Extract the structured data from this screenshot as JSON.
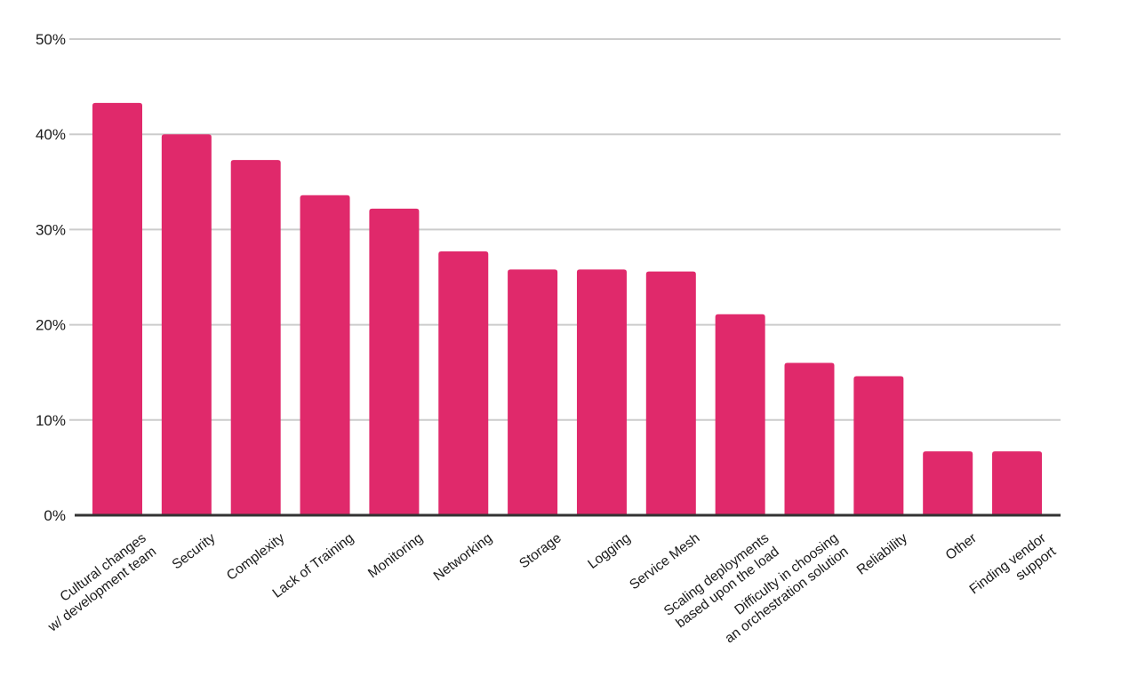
{
  "chart_data": {
    "type": "bar",
    "title": "",
    "xlabel": "",
    "ylabel": "",
    "ylim": [
      0,
      50
    ],
    "yticks": [
      0,
      10,
      20,
      30,
      40,
      50
    ],
    "ytick_format": "percent",
    "grid": true,
    "legend": "none",
    "bar_color": "#e0296b",
    "categories": [
      [
        "Cultural changes",
        "w/ development team"
      ],
      [
        "Security"
      ],
      [
        "Complexity"
      ],
      [
        "Lack of Training"
      ],
      [
        "Monitoring"
      ],
      [
        "Networking"
      ],
      [
        "Storage"
      ],
      [
        "Logging"
      ],
      [
        "Service Mesh"
      ],
      [
        "Scaling deployments",
        "based upon the load"
      ],
      [
        "Difficulty in choosing",
        "an orchestration solution"
      ],
      [
        "Reliability"
      ],
      [
        "Other"
      ],
      [
        "Finding vendor",
        "support"
      ]
    ],
    "values": [
      43.3,
      40.0,
      37.3,
      33.6,
      32.2,
      27.7,
      25.8,
      25.8,
      25.6,
      21.1,
      16.0,
      14.6,
      6.7,
      6.7
    ]
  }
}
